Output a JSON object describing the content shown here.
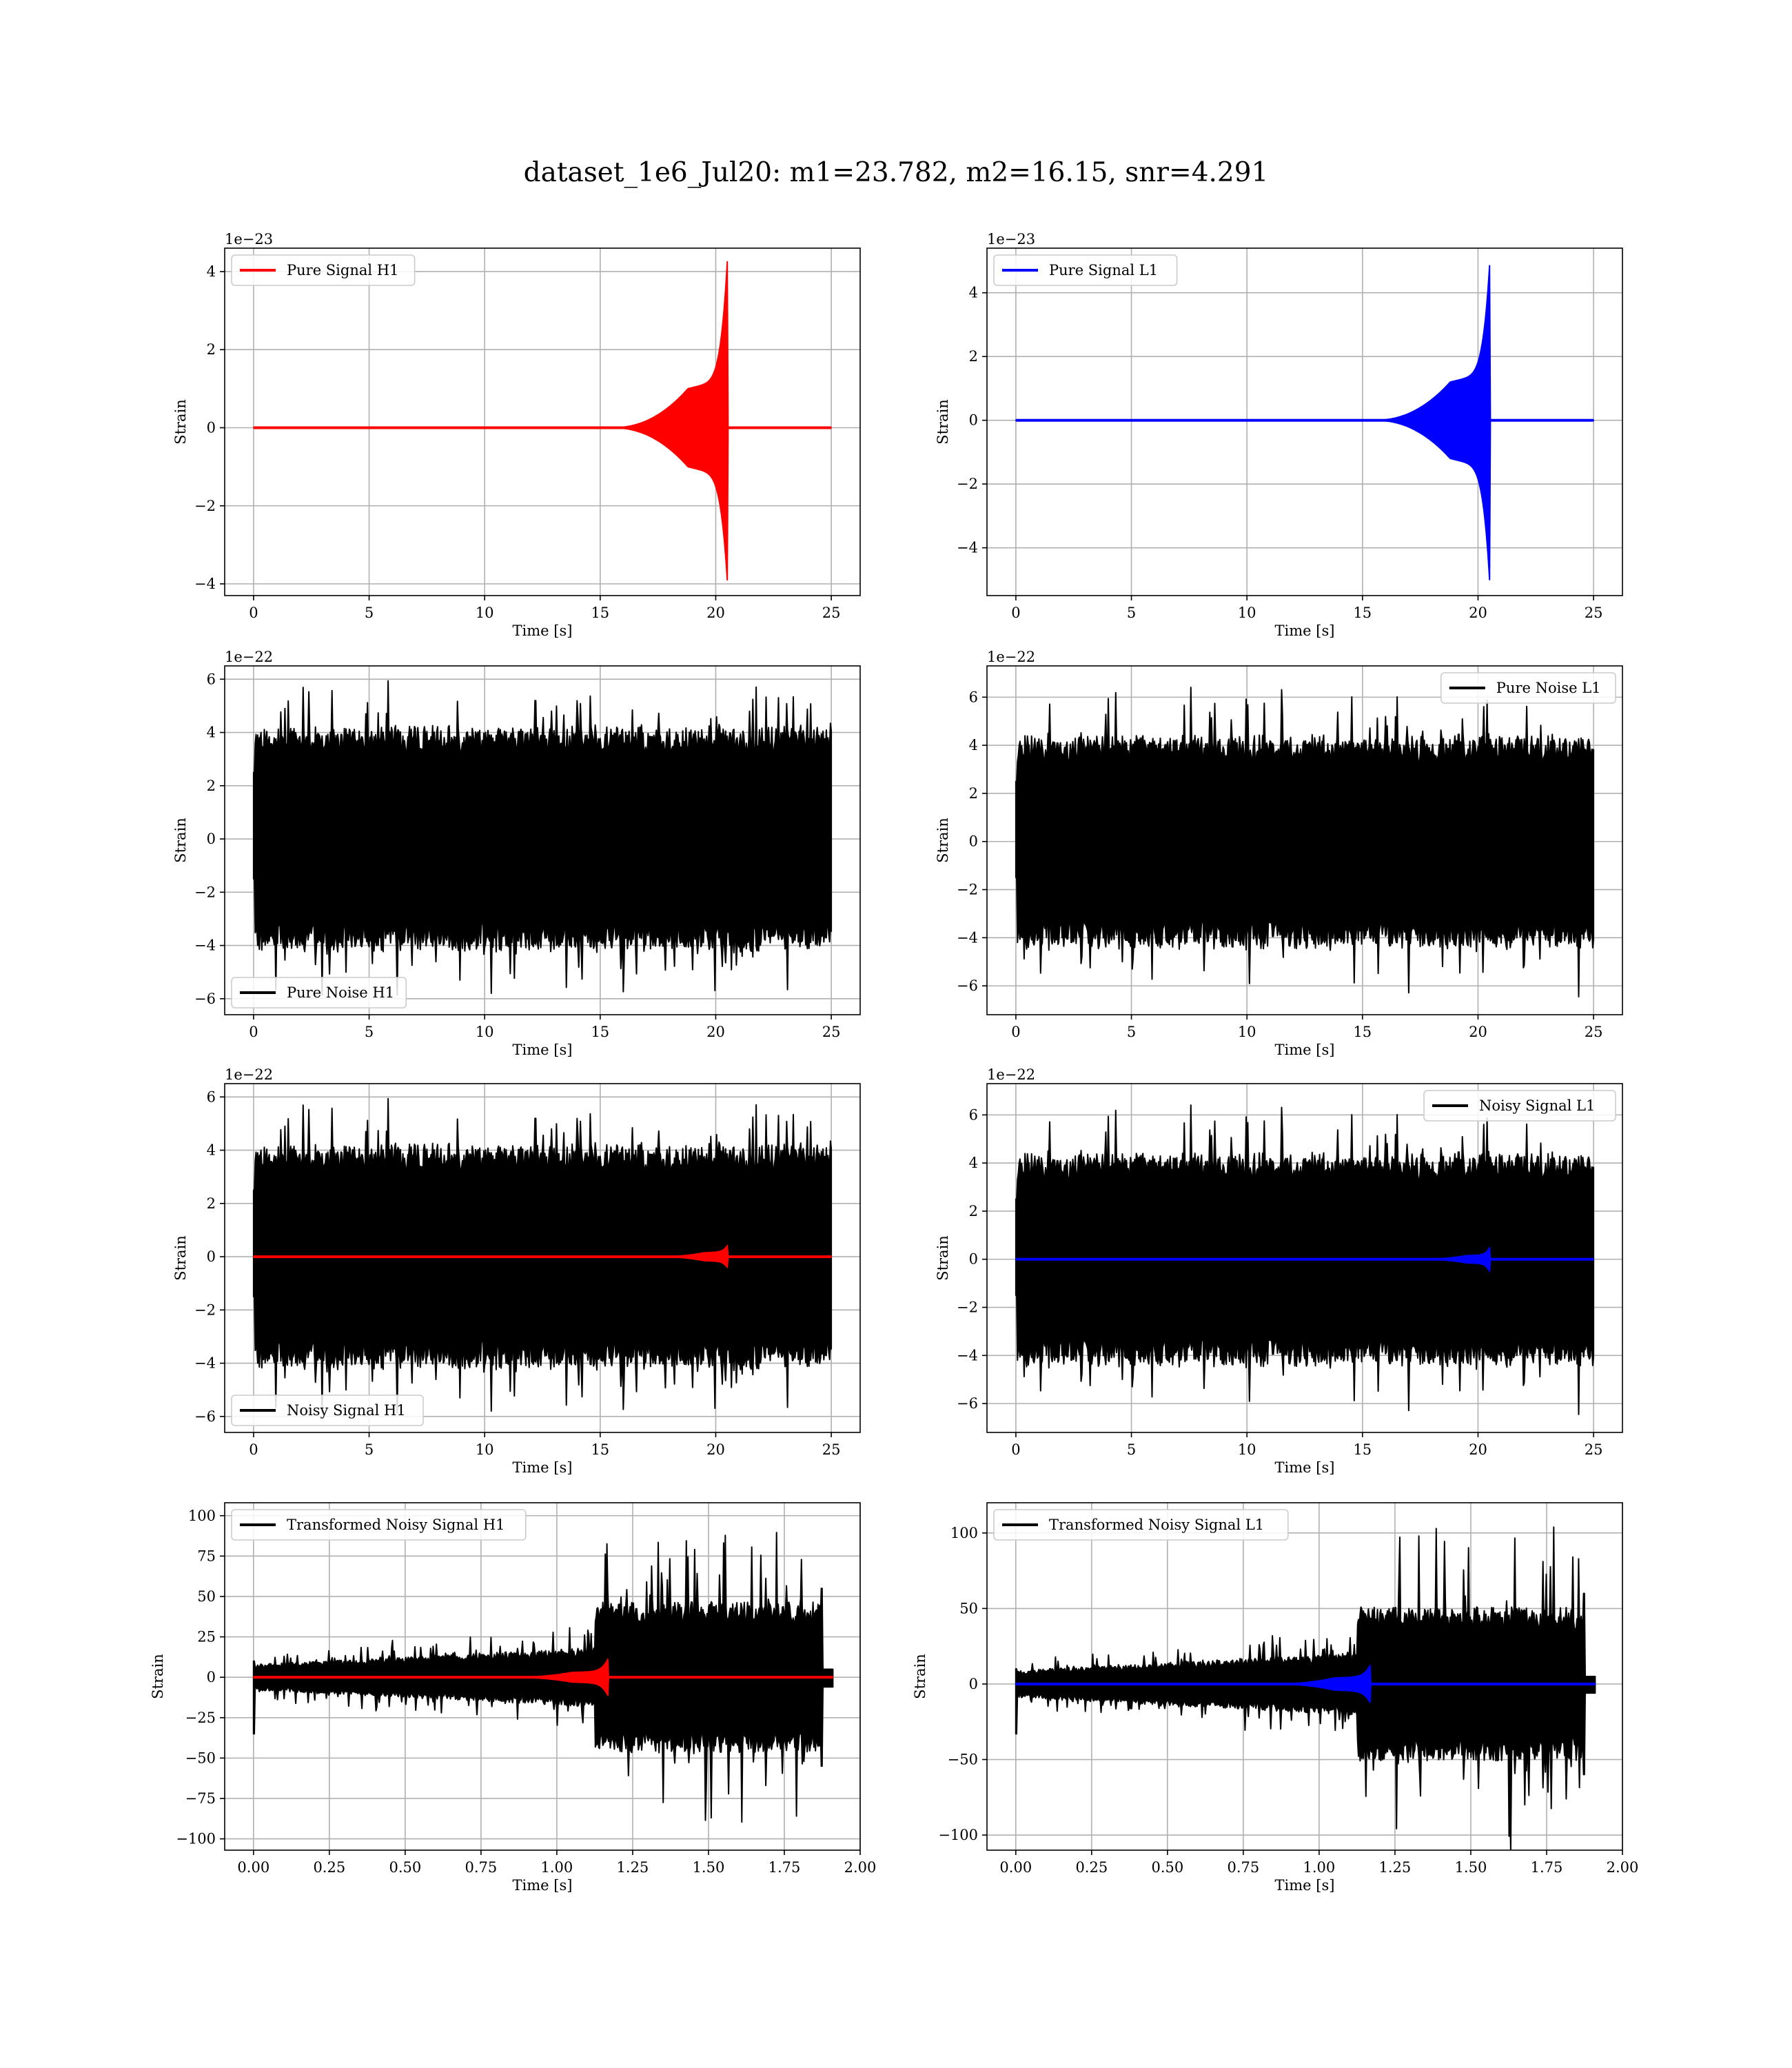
{
  "figure": {
    "title": "dataset_1e6_Jul20: m1=23.782, m2=16.15, snr=4.291",
    "colors": {
      "h1": "#ff0000",
      "l1": "#0000ff",
      "noise": "#000000",
      "grid": "#b0b0b0"
    }
  },
  "chart_data": [
    {
      "type": "line",
      "title": "",
      "xlabel": "Time [s]",
      "ylabel": "Strain",
      "offset_text": "1e−23",
      "xlim": [
        -1.25,
        26.25
      ],
      "ylim": [
        -4.3,
        4.6
      ],
      "xticks": [
        0,
        5,
        10,
        15,
        20,
        25
      ],
      "xtick_labels": [
        "0",
        "5",
        "10",
        "15",
        "20",
        "25"
      ],
      "yticks": [
        -4,
        -2,
        0,
        2,
        4
      ],
      "ytick_labels": [
        "−4",
        "−2",
        "0",
        "2",
        "4"
      ],
      "grid": true,
      "legend": "upper left",
      "series": [
        {
          "name": "Pure Signal H1",
          "color": "#ff0000",
          "kind": "chirp",
          "x_end": 25,
          "merger": 20.5,
          "start": 15.5,
          "plateau_t": 18.8,
          "plateau_amp": 1.0,
          "peak_pos": 4.25,
          "peak_neg": -3.9
        }
      ]
    },
    {
      "type": "line",
      "title": "",
      "xlabel": "Time [s]",
      "ylabel": "Strain",
      "offset_text": "1e−23",
      "xlim": [
        -1.25,
        26.25
      ],
      "ylim": [
        -5.5,
        5.4
      ],
      "xticks": [
        0,
        5,
        10,
        15,
        20,
        25
      ],
      "xtick_labels": [
        "0",
        "5",
        "10",
        "15",
        "20",
        "25"
      ],
      "yticks": [
        -4,
        -2,
        0,
        2,
        4
      ],
      "ytick_labels": [
        "−4",
        "−2",
        "0",
        "2",
        "4"
      ],
      "grid": true,
      "legend": "upper left",
      "series": [
        {
          "name": "Pure Signal L1",
          "color": "#0000ff",
          "kind": "chirp",
          "x_end": 25,
          "merger": 20.5,
          "start": 15.5,
          "plateau_t": 18.8,
          "plateau_amp": 1.2,
          "peak_pos": 4.85,
          "peak_neg": -5.0
        }
      ]
    },
    {
      "type": "line",
      "title": "",
      "xlabel": "Time [s]",
      "ylabel": "Strain",
      "offset_text": "1e−22",
      "xlim": [
        -1.25,
        26.25
      ],
      "ylim": [
        -6.6,
        6.5
      ],
      "xticks": [
        0,
        5,
        10,
        15,
        20,
        25
      ],
      "xtick_labels": [
        "0",
        "5",
        "10",
        "15",
        "20",
        "25"
      ],
      "yticks": [
        -6,
        -4,
        -2,
        0,
        2,
        4,
        6
      ],
      "ytick_labels": [
        "−6",
        "−4",
        "−2",
        "0",
        "2",
        "4",
        "6"
      ],
      "grid": true,
      "legend": "lower left",
      "series": [
        {
          "name": "Pure Noise H1",
          "color": "#000000",
          "kind": "noise",
          "x_end": 25,
          "amp": 4.0,
          "spike": 6.0,
          "seed": 11
        }
      ]
    },
    {
      "type": "line",
      "title": "",
      "xlabel": "Time [s]",
      "ylabel": "Strain",
      "offset_text": "1e−22",
      "xlim": [
        -1.25,
        26.25
      ],
      "ylim": [
        -7.2,
        7.3
      ],
      "xticks": [
        0,
        5,
        10,
        15,
        20,
        25
      ],
      "xtick_labels": [
        "0",
        "5",
        "10",
        "15",
        "20",
        "25"
      ],
      "yticks": [
        -6,
        -4,
        -2,
        0,
        2,
        4,
        6
      ],
      "ytick_labels": [
        "−6",
        "−4",
        "−2",
        "0",
        "2",
        "4",
        "6"
      ],
      "grid": true,
      "legend": "upper right",
      "series": [
        {
          "name": "Pure Noise L1",
          "color": "#000000",
          "kind": "noise",
          "x_end": 25,
          "amp": 4.2,
          "spike": 6.6,
          "seed": 23
        }
      ]
    },
    {
      "type": "line",
      "title": "",
      "xlabel": "Time [s]",
      "ylabel": "Strain",
      "offset_text": "1e−22",
      "xlim": [
        -1.25,
        26.25
      ],
      "ylim": [
        -6.6,
        6.5
      ],
      "xticks": [
        0,
        5,
        10,
        15,
        20,
        25
      ],
      "xtick_labels": [
        "0",
        "5",
        "10",
        "15",
        "20",
        "25"
      ],
      "yticks": [
        -6,
        -4,
        -2,
        0,
        2,
        4,
        6
      ],
      "ytick_labels": [
        "−6",
        "−4",
        "−2",
        "0",
        "2",
        "4",
        "6"
      ],
      "grid": true,
      "legend": "lower left",
      "series": [
        {
          "name": "Noisy Signal H1",
          "color": "#000000",
          "kind": "noise",
          "x_end": 25,
          "amp": 4.0,
          "spike": 6.0,
          "seed": 11
        },
        {
          "name": "",
          "color": "#ff0000",
          "kind": "chirp",
          "x_end": 25,
          "merger": 20.5,
          "start": 17.5,
          "plateau_t": 19.5,
          "plateau_amp": 0.15,
          "peak_pos": 0.42,
          "peak_neg": -0.4
        }
      ]
    },
    {
      "type": "line",
      "title": "",
      "xlabel": "Time [s]",
      "ylabel": "Strain",
      "offset_text": "1e−22",
      "xlim": [
        -1.25,
        26.25
      ],
      "ylim": [
        -7.2,
        7.3
      ],
      "xticks": [
        0,
        5,
        10,
        15,
        20,
        25
      ],
      "xtick_labels": [
        "0",
        "5",
        "10",
        "15",
        "20",
        "25"
      ],
      "yticks": [
        -6,
        -4,
        -2,
        0,
        2,
        4,
        6
      ],
      "ytick_labels": [
        "−6",
        "−4",
        "−2",
        "0",
        "2",
        "4",
        "6"
      ],
      "grid": true,
      "legend": "upper right",
      "series": [
        {
          "name": "Noisy Signal L1",
          "color": "#000000",
          "kind": "noise",
          "x_end": 25,
          "amp": 4.2,
          "spike": 6.6,
          "seed": 23
        },
        {
          "name": "",
          "color": "#0000ff",
          "kind": "chirp",
          "x_end": 25,
          "merger": 20.5,
          "start": 17.5,
          "plateau_t": 19.5,
          "plateau_amp": 0.15,
          "peak_pos": 0.48,
          "peak_neg": -0.5
        }
      ]
    },
    {
      "type": "line",
      "title": "",
      "xlabel": "Time [s]",
      "ylabel": "Strain",
      "offset_text": "",
      "xlim": [
        -0.095,
        2.0
      ],
      "ylim": [
        -107,
        108
      ],
      "xticks": [
        0,
        0.25,
        0.5,
        0.75,
        1.0,
        1.25,
        1.5,
        1.75,
        2.0
      ],
      "xtick_labels": [
        "0.00",
        "0.25",
        "0.50",
        "0.75",
        "1.00",
        "1.25",
        "1.50",
        "1.75",
        "2.00"
      ],
      "yticks": [
        -100,
        -75,
        -50,
        -25,
        0,
        25,
        50,
        75,
        100
      ],
      "ytick_labels": [
        "−100",
        "−75",
        "−50",
        "−25",
        "0",
        "25",
        "50",
        "75",
        "100"
      ],
      "grid": true,
      "legend": "upper left",
      "series": [
        {
          "name": "Transformed Noisy Signal H1",
          "color": "#000000",
          "kind": "transformed",
          "x_end": 1.91,
          "jump": 1.125,
          "end": 1.87,
          "low_amp": 8,
          "high_amp": 55,
          "spike": 95,
          "start_dip": -35,
          "seed": 37
        },
        {
          "name": "",
          "color": "#ff0000",
          "kind": "chirp",
          "x_end": 1.91,
          "merger": 1.17,
          "start": 0.85,
          "plateau_t": 1.05,
          "plateau_amp": 3,
          "peak_pos": 12,
          "peak_neg": -12
        }
      ]
    },
    {
      "type": "line",
      "title": "",
      "xlabel": "Time [s]",
      "ylabel": "Strain",
      "offset_text": "",
      "xlim": [
        -0.095,
        2.0
      ],
      "ylim": [
        -110,
        120
      ],
      "xticks": [
        0,
        0.25,
        0.5,
        0.75,
        1.0,
        1.25,
        1.5,
        1.75,
        2.0
      ],
      "xtick_labels": [
        "0.00",
        "0.25",
        "0.50",
        "0.75",
        "1.00",
        "1.25",
        "1.50",
        "1.75",
        "2.00"
      ],
      "yticks": [
        -100,
        -50,
        0,
        50,
        100
      ],
      "ytick_labels": [
        "−100",
        "−50",
        "0",
        "50",
        "100"
      ],
      "grid": true,
      "legend": "upper left",
      "series": [
        {
          "name": "Transformed Noisy Signal L1",
          "color": "#000000",
          "kind": "transformed",
          "x_end": 1.91,
          "jump": 1.125,
          "end": 1.87,
          "low_amp": 9,
          "high_amp": 60,
          "spike": 112,
          "start_dip": -33,
          "seed": 53
        },
        {
          "name": "",
          "color": "#0000ff",
          "kind": "chirp",
          "x_end": 1.91,
          "merger": 1.17,
          "start": 0.85,
          "plateau_t": 1.05,
          "plateau_amp": 4,
          "peak_pos": 13,
          "peak_neg": -13
        }
      ]
    }
  ]
}
